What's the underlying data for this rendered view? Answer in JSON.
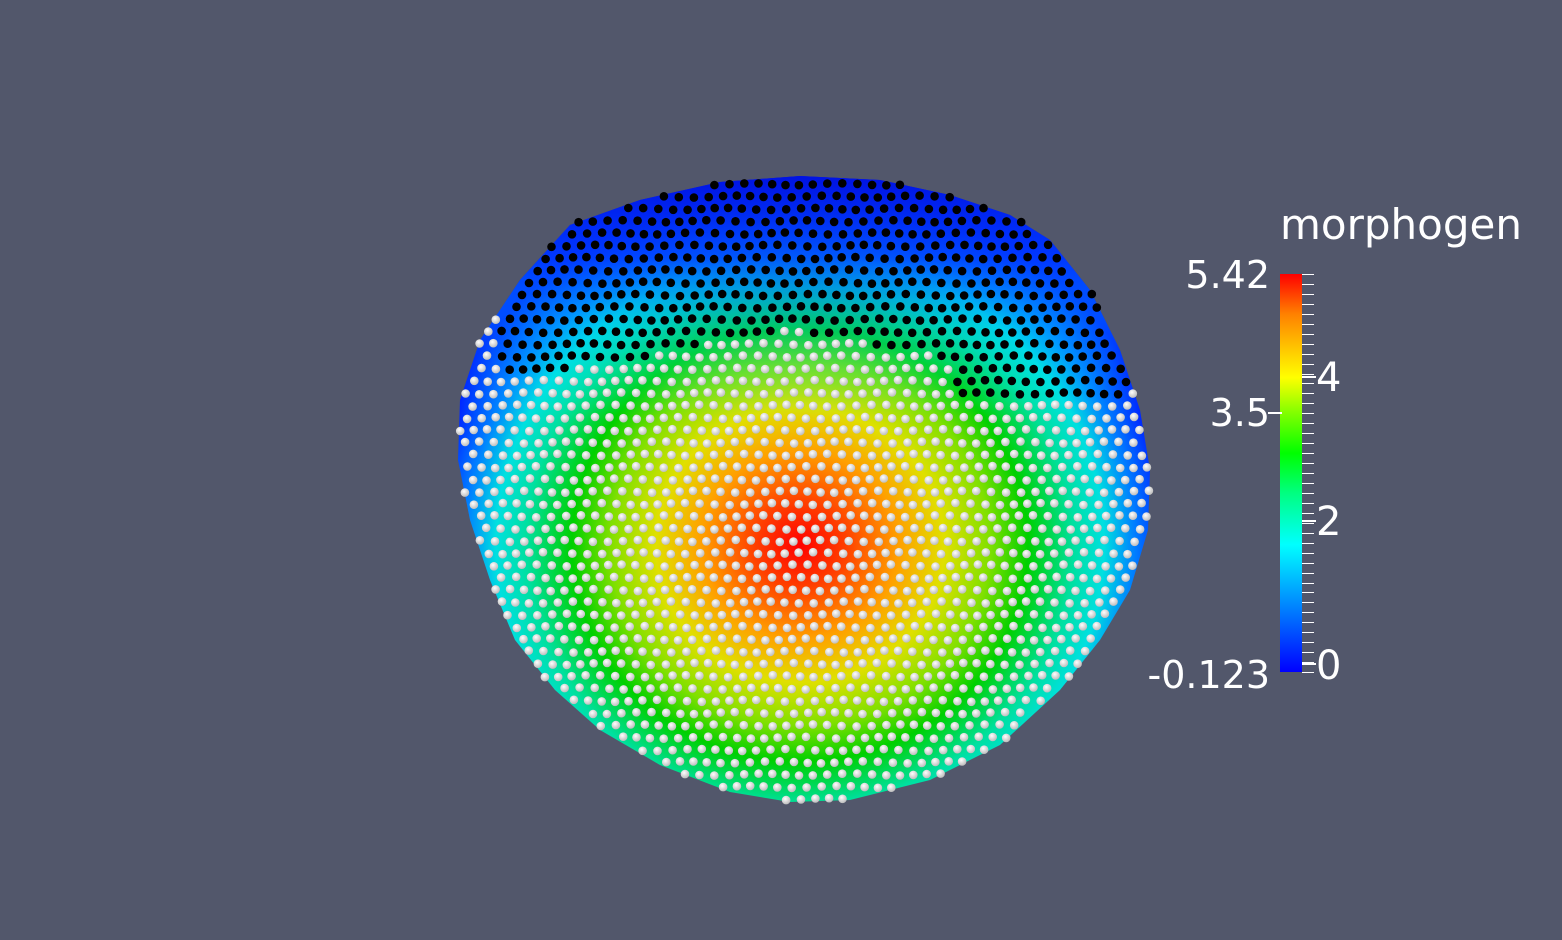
{
  "legend": {
    "title": "morphogen",
    "range_max_label": "5.42",
    "range_mid_label": "3.5",
    "range_min_label": "-0.123",
    "range_min": -0.123,
    "range_max": 5.42,
    "tick_labels": [
      "4",
      "2",
      "0"
    ],
    "tick_values": [
      4,
      2,
      0
    ]
  },
  "colors": {
    "background": "#52576b",
    "active_cell": "#000000",
    "inactive_cell": "#e8e8e8",
    "colormap_low": "#0000ff",
    "colormap_high": "#ff0000"
  }
}
